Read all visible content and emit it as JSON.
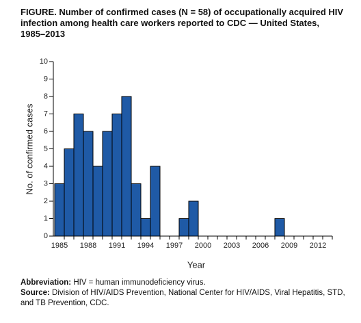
{
  "chart_data": {
    "type": "bar",
    "title": "FIGURE. Number of confirmed cases (N = 58) of occupationally acquired HIV infection among health care workers reported to CDC — United States, 1985–2013",
    "x_label": "Year",
    "y_label": "No. of confirmed cases",
    "categories": [
      "1985",
      null,
      null,
      "1988",
      null,
      null,
      "1991",
      null,
      null,
      "1994",
      null,
      null,
      "1997",
      null,
      null,
      "2000",
      null,
      null,
      "2003",
      null,
      null,
      "2006",
      null,
      null,
      "2009",
      null,
      null,
      "2012",
      null
    ],
    "values": [
      3,
      5,
      7,
      6,
      4,
      6,
      7,
      8,
      3,
      1,
      4,
      0,
      0,
      1,
      2,
      0,
      0,
      0,
      0,
      0,
      0,
      0,
      0,
      1,
      0,
      0,
      0,
      0,
      0
    ],
    "color": "#1f5aa6",
    "ylim": [
      0,
      10
    ],
    "yticks": [
      0,
      1,
      2,
      3,
      4,
      5,
      6,
      7,
      8,
      9,
      10
    ]
  },
  "footnotes": [
    {
      "label": "Abbreviation:",
      "text": " HIV = human immunodeficiency virus."
    },
    {
      "label": "Source:",
      "text": " Division of HIV/AIDS Prevention, National Center for HIV/AIDS, Viral Hepatitis, STD, and TB Prevention, CDC."
    }
  ]
}
